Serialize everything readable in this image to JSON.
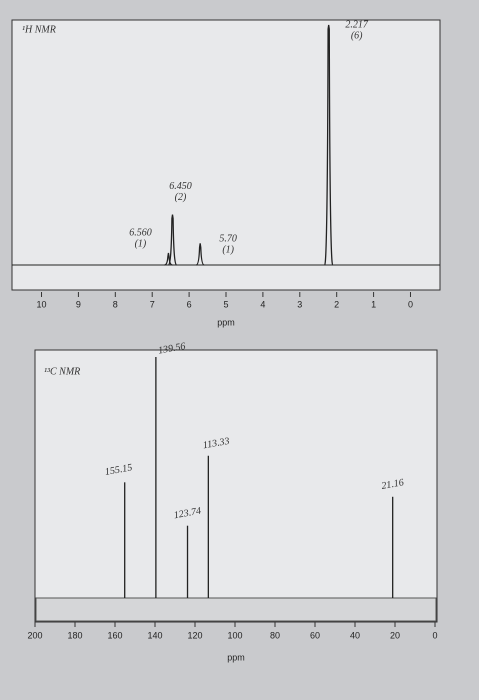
{
  "chart_data": [
    {
      "type": "spectrum",
      "title": "¹H NMR",
      "x_label": "ppm",
      "x": [
        6.56,
        6.45,
        5.7,
        2.217
      ],
      "values": [
        5,
        21,
        9,
        100
      ],
      "peak_labels": [
        "6.560",
        "6.450",
        "5.70",
        "2.217"
      ],
      "integrations": [
        "(1)",
        "(2)",
        "(1)",
        "(6)"
      ],
      "color": "#222222",
      "xlim": [
        10.8,
        -0.8
      ],
      "xticks": [
        10,
        9,
        8,
        7,
        6,
        5,
        4,
        3,
        2,
        1,
        0
      ]
    },
    {
      "type": "stick",
      "title": "¹³C NMR",
      "x_label": "ppm",
      "x": [
        155.15,
        139.56,
        123.74,
        113.33,
        21.16
      ],
      "values": [
        48,
        100,
        30,
        59,
        42
      ],
      "peak_labels": [
        "155.15",
        "139.56",
        "123.74",
        "113.33",
        "21.16"
      ],
      "color": "#222222",
      "xlim": [
        200,
        -1
      ],
      "xticks": [
        200,
        180,
        160,
        140,
        120,
        100,
        80,
        60,
        40,
        20,
        0
      ]
    }
  ]
}
